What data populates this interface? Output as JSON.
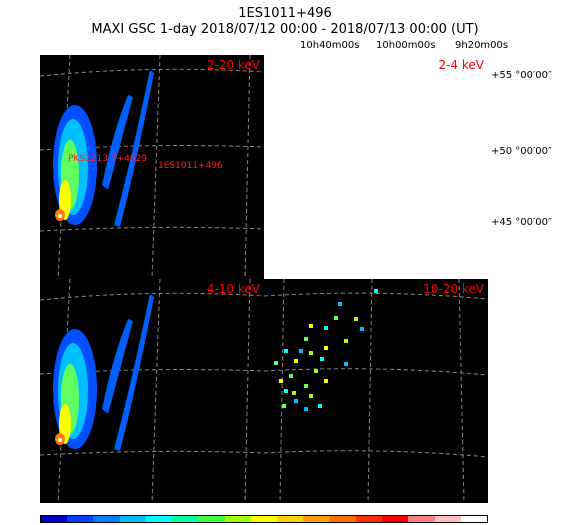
{
  "header": {
    "title": "1ES1011+496",
    "subtitle": "MAXI GSC 1-day 2018/07/12 00:00 - 2018/07/13 00:00 (UT)"
  },
  "ra_labels": [
    "10h40m00s",
    "10h00m00s",
    "9h20m00s"
  ],
  "dec_labels": [
    "+55 °00′00″",
    "+50 °00′00″",
    "+45 °00′00″"
  ],
  "panels": {
    "tl": {
      "band": "2-20 keV"
    },
    "tr": {
      "band": "2-4 keV"
    },
    "bl": {
      "band": "4-10 keV"
    },
    "br": {
      "band": "10-20 keV"
    }
  },
  "sources": [
    "PKS1213.7+4629",
    "1ES1011+496"
  ],
  "colorbar": {
    "colors": [
      "#0000c8",
      "#0040ff",
      "#0080ff",
      "#00bfff",
      "#00ffff",
      "#00ffa0",
      "#40ff40",
      "#a0ff00",
      "#ffff00",
      "#ffd000",
      "#ffa000",
      "#ff7000",
      "#ff3000",
      "#ff0000",
      "#ff8080",
      "#ffc0c0",
      "#ffffff"
    ]
  }
}
